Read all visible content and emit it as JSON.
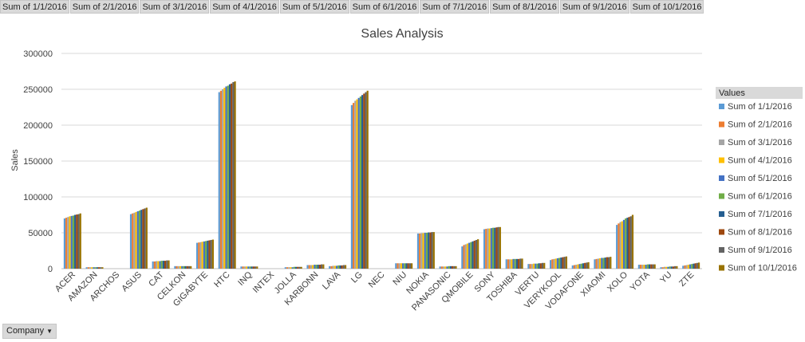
{
  "field_buttons": [
    "Sum of 1/1/2016",
    "Sum of 2/1/2016",
    "Sum of 3/1/2016",
    "Sum of 4/1/2016",
    "Sum of 5/1/2016",
    "Sum of 6/1/2016",
    "Sum of 7/1/2016",
    "Sum of 8/1/2016",
    "Sum of 9/1/2016",
    "Sum of 10/1/2016"
  ],
  "axis_field_button": "Company",
  "axis_field_arrow": "▼",
  "legend_header": "Values",
  "chart_data": {
    "type": "bar",
    "title": "Sales Analysis",
    "xlabel": "",
    "ylabel": "Sales",
    "ylim": [
      0,
      300000
    ],
    "yticks": [
      0,
      50000,
      100000,
      150000,
      200000,
      250000,
      300000
    ],
    "grid": true,
    "legend_position": "right",
    "categories": [
      "ACER",
      "AMAZON",
      "ARCHOS",
      "ASUS",
      "CAT",
      "CELKON",
      "GIGABYTE",
      "HTC",
      "INQ",
      "INTEX",
      "JOLLA",
      "KARBONN",
      "LAVA",
      "LG",
      "NEC",
      "NIU",
      "NOKIA",
      "PANASONIC",
      "QMOBILE",
      "SONY",
      "TOSHIBA",
      "VERTU",
      "VERYKOOL",
      "VODAFONE",
      "XIAOMI",
      "XOLO",
      "YOTA",
      "YU",
      "ZTE"
    ],
    "colors": [
      "#5B9BD5",
      "#ED7D31",
      "#A5A5A5",
      "#FFC000",
      "#4472C4",
      "#70AD47",
      "#255E91",
      "#9E480E",
      "#636363",
      "#997300"
    ],
    "series": [
      {
        "name": "Sum of 1/1/2016",
        "values": [
          70000,
          2000,
          0,
          76000,
          10000,
          3500,
          36000,
          246000,
          3000,
          0,
          2000,
          5000,
          3500,
          228000,
          0,
          7500,
          49000,
          3000,
          31000,
          55000,
          13000,
          6500,
          12000,
          4500,
          13000,
          61000,
          5500,
          2000,
          4000
        ]
      },
      {
        "name": "Sum of 2/1/2016",
        "values": [
          71000,
          2000,
          0,
          77000,
          10000,
          3500,
          36500,
          248000,
          3000,
          0,
          2000,
          5000,
          3500,
          231000,
          0,
          7500,
          49000,
          3000,
          33000,
          55500,
          13000,
          6500,
          13000,
          5000,
          13500,
          63000,
          5500,
          2000,
          4500
        ]
      },
      {
        "name": "Sum of 3/1/2016",
        "values": [
          72000,
          2000,
          0,
          78000,
          10500,
          3500,
          37000,
          250000,
          3000,
          0,
          2000,
          5000,
          4000,
          234000,
          0,
          7500,
          49500,
          3000,
          34000,
          56000,
          13000,
          6500,
          13500,
          5500,
          14000,
          65000,
          5500,
          2500,
          5000
        ]
      },
      {
        "name": "Sum of 4/1/2016",
        "values": [
          73000,
          2000,
          0,
          79000,
          10500,
          3500,
          37500,
          252000,
          3000,
          0,
          2000,
          5000,
          4000,
          236000,
          0,
          7500,
          49500,
          3000,
          35000,
          56000,
          13000,
          7000,
          14000,
          6000,
          14500,
          66000,
          5500,
          2500,
          5500
        ]
      },
      {
        "name": "Sum of 5/1/2016",
        "values": [
          73500,
          2000,
          0,
          80000,
          10500,
          3500,
          38000,
          254000,
          3000,
          0,
          2000,
          5500,
          4000,
          238000,
          0,
          7500,
          50000,
          3000,
          36000,
          56500,
          13500,
          7000,
          14500,
          6500,
          15000,
          68000,
          5500,
          2500,
          6000
        ]
      },
      {
        "name": "Sum of 6/1/2016",
        "values": [
          74000,
          2000,
          0,
          81000,
          11000,
          3500,
          38500,
          255000,
          3000,
          0,
          2500,
          5500,
          4500,
          240000,
          0,
          7500,
          50000,
          3500,
          37000,
          57000,
          13500,
          7000,
          15000,
          7000,
          15000,
          70000,
          6000,
          3000,
          6500
        ]
      },
      {
        "name": "Sum of 7/1/2016",
        "values": [
          75000,
          2000,
          0,
          82000,
          11000,
          3500,
          39000,
          257000,
          3000,
          0,
          2500,
          5500,
          4500,
          242000,
          0,
          7500,
          50500,
          3500,
          38000,
          57000,
          13500,
          7500,
          15500,
          7500,
          15500,
          71000,
          6000,
          3000,
          7000
        ]
      },
      {
        "name": "Sum of 8/1/2016",
        "values": [
          75500,
          2000,
          0,
          83000,
          11000,
          3500,
          39500,
          258000,
          3000,
          0,
          2500,
          5500,
          4500,
          244000,
          0,
          7500,
          50500,
          3500,
          39000,
          57500,
          13500,
          7500,
          16000,
          8000,
          16000,
          72000,
          6000,
          3000,
          7500
        ]
      },
      {
        "name": "Sum of 9/1/2016",
        "values": [
          76000,
          2000,
          0,
          84000,
          11500,
          3500,
          40000,
          260000,
          3000,
          0,
          2500,
          6000,
          5000,
          246000,
          0,
          7500,
          51000,
          3500,
          40000,
          58000,
          14000,
          8000,
          16500,
          8500,
          16000,
          73000,
          6000,
          3500,
          8000
        ]
      },
      {
        "name": "Sum of 10/1/2016",
        "values": [
          77000,
          2000,
          0,
          85000,
          11500,
          3500,
          40500,
          261000,
          3000,
          0,
          2500,
          6000,
          5000,
          248000,
          0,
          7500,
          51000,
          3500,
          41000,
          58000,
          14000,
          8000,
          17000,
          9000,
          16500,
          75000,
          6000,
          3500,
          8500
        ]
      }
    ]
  }
}
